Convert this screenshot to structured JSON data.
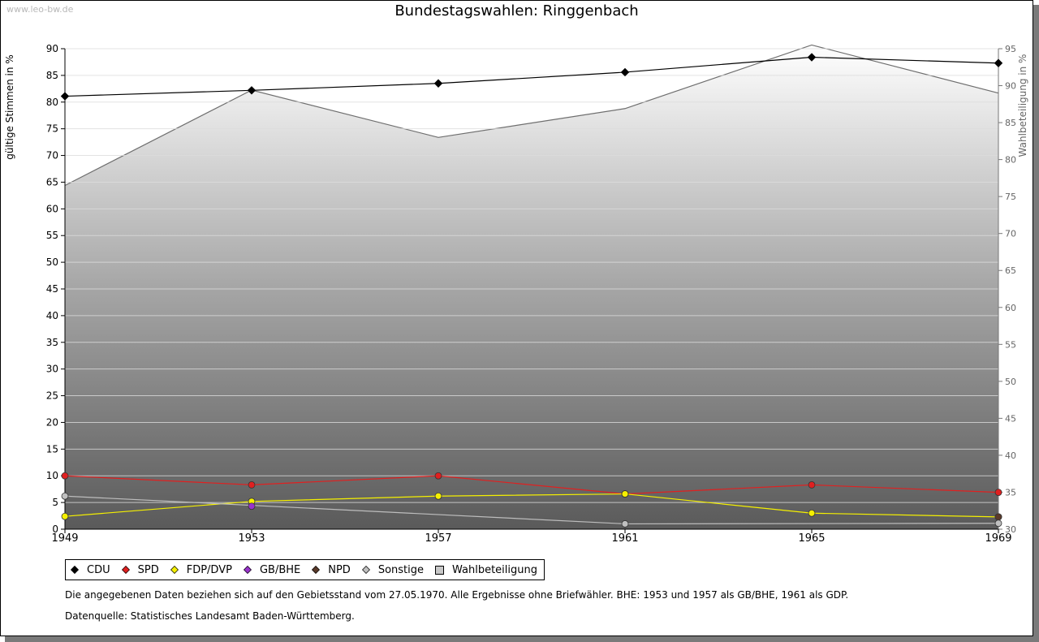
{
  "watermark": "www.leo-bw.de",
  "title": "Bundestagswahlen: Ringgenbach",
  "colors": {
    "CDU": "#000000",
    "SPD": "#e02020",
    "FDP/DVP": "#f5f000",
    "GB/BHE": "#9933cc",
    "NPD": "#5a3a2a",
    "Sonstige": "#c0c0c0",
    "Wahlbeteiligung": "#c8c8c8"
  },
  "chart_data": {
    "type": "line",
    "title": "Bundestagswahlen: Ringgenbach",
    "x": [
      1949,
      1953,
      1957,
      1961,
      1965,
      1969
    ],
    "xlabel": "",
    "ylabel": "gültige Stimmen in %",
    "ylabel_right": "Wahlbeteiligung in %",
    "ylim": [
      0,
      90
    ],
    "ylim_right": [
      30,
      95
    ],
    "yticks": [
      0,
      5,
      10,
      15,
      20,
      25,
      30,
      35,
      40,
      45,
      50,
      55,
      60,
      65,
      70,
      75,
      80,
      85,
      90
    ],
    "yticks_right": [
      30,
      35,
      40,
      45,
      50,
      55,
      60,
      65,
      70,
      75,
      80,
      85,
      90,
      95
    ],
    "grid": true,
    "legend_position": "bottom",
    "series": [
      {
        "name": "CDU",
        "values": [
          81.1,
          82.2,
          83.5,
          85.6,
          88.4,
          87.3
        ]
      },
      {
        "name": "SPD",
        "values": [
          10.0,
          8.3,
          10.0,
          6.6,
          8.3,
          6.9
        ]
      },
      {
        "name": "FDP/DVP",
        "values": [
          2.4,
          5.2,
          6.2,
          6.6,
          3.0,
          2.3
        ]
      },
      {
        "name": "GB/BHE",
        "values": [
          null,
          4.3,
          null,
          null,
          null,
          null
        ]
      },
      {
        "name": "NPD",
        "values": [
          null,
          null,
          null,
          null,
          null,
          2.3
        ]
      },
      {
        "name": "Sonstige",
        "values": [
          6.2,
          null,
          null,
          1.0,
          null,
          1.1
        ]
      },
      {
        "name": "Wahlbeteiligung",
        "axis": "right",
        "values": [
          76.5,
          89.4,
          83.0,
          86.9,
          95.5,
          89.0
        ]
      }
    ]
  },
  "legend": {
    "items": [
      {
        "label": "CDU",
        "marker": "diamond"
      },
      {
        "label": "SPD",
        "marker": "diamond"
      },
      {
        "label": "FDP/DVP",
        "marker": "diamond"
      },
      {
        "label": "GB/BHE",
        "marker": "diamond"
      },
      {
        "label": "NPD",
        "marker": "diamond"
      },
      {
        "label": "Sonstige",
        "marker": "diamond"
      },
      {
        "label": "Wahlbeteiligung",
        "marker": "square"
      }
    ]
  },
  "note": "Die angegebenen Daten beziehen sich auf den Gebietsstand vom 27.05.1970. Alle Ergebnisse ohne Briefwähler. BHE: 1953 und 1957 als GB/BHE, 1961 als GDP.",
  "source": "Datenquelle: Statistisches Landesamt Baden-Württemberg."
}
